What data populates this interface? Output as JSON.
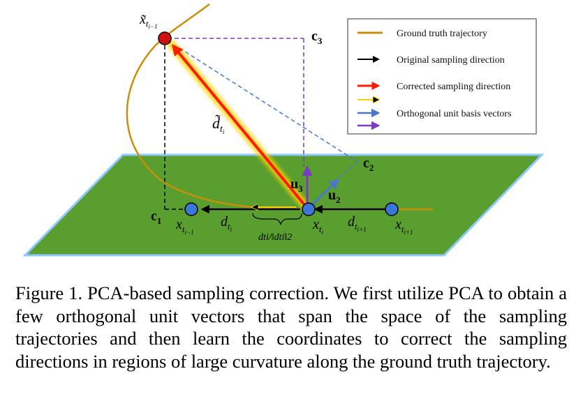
{
  "legend": {
    "items": [
      {
        "label": "Ground truth trajectory",
        "color": "#c8900a",
        "kind": "line"
      },
      {
        "label": "Original sampling direction",
        "color": "#000000",
        "kind": "arrow"
      },
      {
        "label": "Corrected sampling direction",
        "color": "#ff1a00",
        "kind": "glow-arrow"
      },
      {
        "label": "",
        "color": "#000000",
        "kind": "yellow-arrow"
      },
      {
        "label": "Orthogonal unit basis vectors",
        "color": "#4a78c8",
        "kind": "arrow"
      },
      {
        "label": "",
        "color": "#7a3cc0",
        "kind": "arrow"
      }
    ]
  },
  "labels": {
    "x_prev_tilde": "x̃",
    "x_prev_tilde_sub": "t",
    "x_prev_tilde_subsub": "i−1",
    "c3": "c",
    "c3_sub": "3",
    "c2": "c",
    "c2_sub": "2",
    "c1": "c",
    "c1_sub": "1",
    "u3": "u",
    "u3_sub": "3",
    "u2": "u",
    "u2_sub": "2",
    "d_tilde": "d̃",
    "d_tilde_sub": "t",
    "d_tilde_subsub": "i",
    "x_prev": "x",
    "x_prev_sub": "t",
    "x_prev_subsub": "i−1",
    "d_ti": "d",
    "d_ti_sub": "t",
    "d_ti_subsub": "i",
    "x_ti": "x",
    "x_ti_sub": "t",
    "x_ti_subsub": "i",
    "d_next": "d",
    "d_next_sub": "t",
    "d_next_subsub": "i+1",
    "x_next": "x",
    "x_next_sub": "t",
    "x_next_subsub": "i+1",
    "norm_label": "dti/‖dti‖2"
  },
  "colors": {
    "plane": "#5a9e30",
    "plane_edge": "#8ec8ff",
    "trajectory": "#c8900a",
    "corrected": "#ff1a00",
    "glow": "#ffd000",
    "basis_u2": "#4a78c8",
    "basis_u3": "#7a3cc0",
    "point_blue": "#3a78d8",
    "point_red": "#d01010"
  },
  "caption": "Figure 1. PCA-based sampling correction. We first utilize PCA to obtain a few orthogonal unit vectors that span the space of the sampling trajectories and then learn the coordinates to correct the sampling directions in regions of large curvature along the ground truth trajectory."
}
